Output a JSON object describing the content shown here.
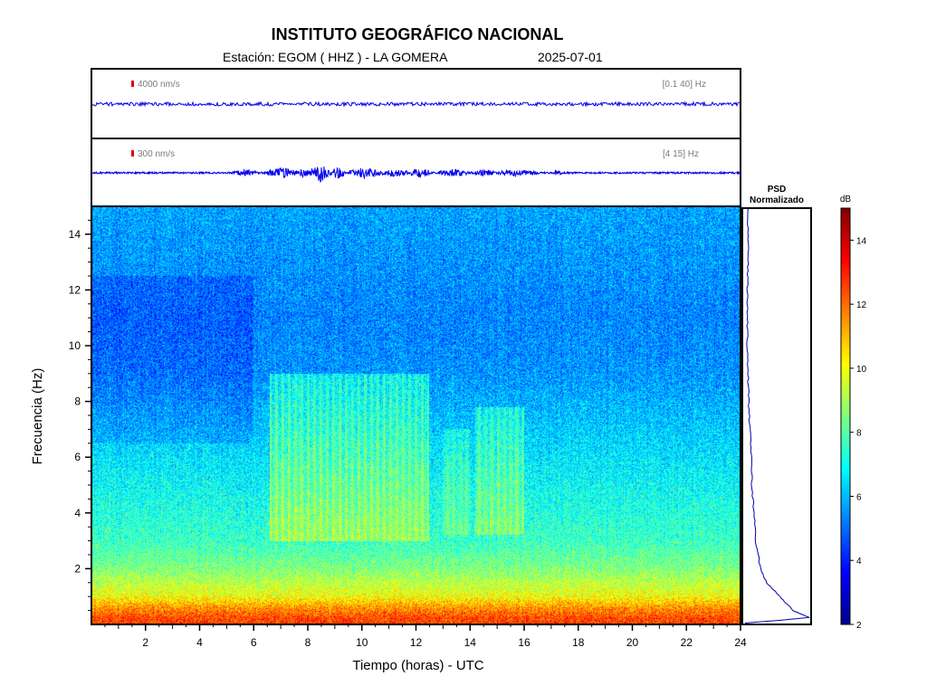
{
  "header": {
    "title": "INSTITUTO GEOGRÁFICO NACIONAL",
    "station_label": "Estación:",
    "station_value": "EGOM ( HHZ ) - LA GOMERA",
    "date": "2025-07-01"
  },
  "traces": [
    {
      "amplitude_label": "4000 nm/s",
      "band_label": "[0.1 40] Hz"
    },
    {
      "amplitude_label": "300 nm/s",
      "band_label": "[4 15] Hz"
    }
  ],
  "psd_panel": {
    "title_line1": "PSD",
    "title_line2": "Normalizado"
  },
  "colorbar": {
    "unit": "dB",
    "range": [
      2,
      15
    ],
    "ticks": [
      "2",
      "4",
      "6",
      "8",
      "10",
      "12",
      "14"
    ],
    "colormap": [
      "#00008f",
      "#0000ff",
      "#0080ff",
      "#00ffff",
      "#80ff80",
      "#ffff00",
      "#ff8000",
      "#ff0000",
      "#800000"
    ]
  },
  "chart_data": [
    {
      "type": "line",
      "panel": "broadband-trace",
      "x_range": [
        0,
        24
      ],
      "x_units": "horas UTC",
      "scale_bar": "4000 nm/s",
      "filter": "[0.1 40] Hz",
      "description_values": {
        "level": "flat, near-constant amplitude"
      }
    },
    {
      "type": "line",
      "panel": "filtered-trace",
      "x_range": [
        0,
        24
      ],
      "x_units": "horas UTC",
      "scale_bar": "300 nm/s",
      "filter": "[4 15] Hz",
      "bursts": [
        {
          "t_start": 5.2,
          "t_end": 6.2,
          "rel_amp": 0.3
        },
        {
          "t_start": 6.5,
          "t_end": 7.6,
          "rel_amp": 0.5
        },
        {
          "t_start": 7.6,
          "t_end": 8.1,
          "rel_amp": 0.45
        },
        {
          "t_start": 8.1,
          "t_end": 8.8,
          "rel_amp": 0.9
        },
        {
          "t_start": 8.8,
          "t_end": 9.4,
          "rel_amp": 0.55
        },
        {
          "t_start": 9.5,
          "t_end": 10.7,
          "rel_amp": 0.5
        },
        {
          "t_start": 10.7,
          "t_end": 11.8,
          "rel_amp": 0.4
        },
        {
          "t_start": 11.8,
          "t_end": 12.5,
          "rel_amp": 0.55
        },
        {
          "t_start": 12.8,
          "t_end": 14.0,
          "rel_amp": 0.4
        },
        {
          "t_start": 14.1,
          "t_end": 14.9,
          "rel_amp": 0.35
        },
        {
          "t_start": 15.0,
          "t_end": 16.6,
          "rel_amp": 0.35
        },
        {
          "t_start": 17.1,
          "t_end": 17.4,
          "rel_amp": 0.3
        }
      ]
    },
    {
      "type": "heatmap",
      "panel": "spectrogram",
      "xlabel": "Tiempo (horas) - UTC",
      "ylabel": "Frecuencia  (Hz)",
      "xlim": [
        0,
        24
      ],
      "ylim": [
        0,
        15
      ],
      "xticks": [
        "2",
        "4",
        "6",
        "8",
        "10",
        "12",
        "14",
        "16",
        "18",
        "20",
        "22",
        "24"
      ],
      "yticks": [
        "2",
        "4",
        "6",
        "8",
        "10",
        "12",
        "14"
      ],
      "value_units": "dB",
      "background_profile_db": [
        {
          "freq": 0.2,
          "db": 12.5
        },
        {
          "freq": 0.6,
          "db": 11.5
        },
        {
          "freq": 1.0,
          "db": 10.0
        },
        {
          "freq": 2.0,
          "db": 8.5
        },
        {
          "freq": 3.0,
          "db": 7.6
        },
        {
          "freq": 5.0,
          "db": 6.9
        },
        {
          "freq": 7.0,
          "db": 6.2
        },
        {
          "freq": 9.0,
          "db": 5.5
        },
        {
          "freq": 11.0,
          "db": 5.3
        },
        {
          "freq": 13.0,
          "db": 5.5
        },
        {
          "freq": 15.0,
          "db": 5.7
        }
      ],
      "activity_blocks": [
        {
          "t_start": 6.6,
          "t_end": 12.5,
          "f_low": 3.0,
          "f_high": 9.0,
          "db_increase": 1.8
        },
        {
          "t_start": 13.0,
          "t_end": 14.0,
          "f_low": 3.2,
          "f_high": 7.0,
          "db_increase": 1.0
        },
        {
          "t_start": 14.2,
          "t_end": 16.0,
          "f_low": 3.2,
          "f_high": 7.8,
          "db_increase": 1.4
        }
      ]
    },
    {
      "type": "line",
      "panel": "psd-normalized",
      "xlabel": "",
      "ylabel": "",
      "ylim": [
        0,
        15
      ],
      "x_range": [
        0,
        1
      ],
      "points": [
        {
          "freq": 0.05,
          "value": 0.01
        },
        {
          "freq": 0.15,
          "value": 0.55
        },
        {
          "freq": 0.25,
          "value": 1.0
        },
        {
          "freq": 0.5,
          "value": 0.75
        },
        {
          "freq": 1.0,
          "value": 0.55
        },
        {
          "freq": 1.5,
          "value": 0.35
        },
        {
          "freq": 2.0,
          "value": 0.25
        },
        {
          "freq": 3.0,
          "value": 0.18
        },
        {
          "freq": 4.0,
          "value": 0.15
        },
        {
          "freq": 5.0,
          "value": 0.12
        },
        {
          "freq": 6.0,
          "value": 0.11
        },
        {
          "freq": 7.0,
          "value": 0.09
        },
        {
          "freq": 8.0,
          "value": 0.07
        },
        {
          "freq": 9.0,
          "value": 0.06
        },
        {
          "freq": 10.0,
          "value": 0.05
        },
        {
          "freq": 11.0,
          "value": 0.05
        },
        {
          "freq": 12.0,
          "value": 0.05
        },
        {
          "freq": 13.0,
          "value": 0.06
        },
        {
          "freq": 14.0,
          "value": 0.06
        },
        {
          "freq": 15.0,
          "value": 0.06
        }
      ]
    }
  ]
}
